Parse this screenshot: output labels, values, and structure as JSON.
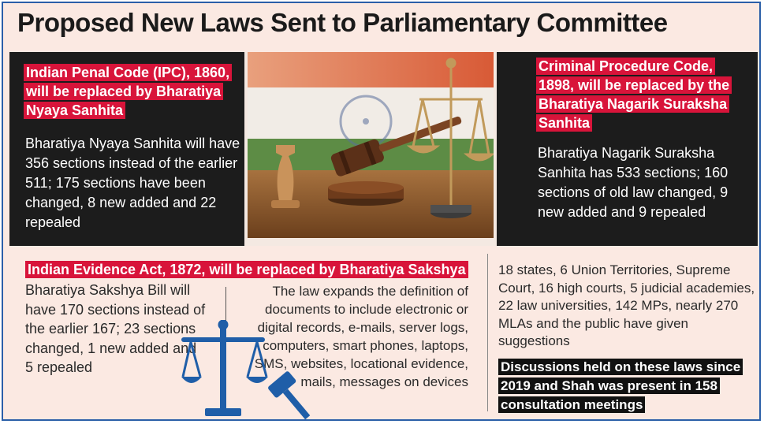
{
  "title": "Proposed New Laws Sent to Parliamentary Committee",
  "ipc": {
    "headline": "Indian Penal Code (IPC), 1860, will be replaced by Bharatiya Nyaya Sanhita",
    "body": "Bharatiya Nyaya Sanhita will have 356 sections instead of the earlier 511; 175 sections have been changed, 8 new added and 22 repealed"
  },
  "crpc": {
    "headline": "Criminal Procedure Code, 1898, will be replaced by the Bharatiya Nagarik Suraksha Sanhita",
    "body": "Bharatiya Nagarik Suraksha Sanhita has 533 sections; 160 sections of old law changed, 9 new added and 9 repealed"
  },
  "evidence": {
    "headline": "Indian Evidence Act, 1872, will be replaced by Bharatiya Sakshya",
    "body": "Bharatiya Sakshya Bill will have 170 sections instead of the earlier 167; 23 sections changed, 1 new added and 5 repealed",
    "expansion": "The law expands the definition of documents to include electronic or digital records, e-mails, server logs, computers, smart phones, laptops, SMS, websites, locational evidence, mails, messages on devices"
  },
  "consultation": {
    "suggestions": "18 states, 6 Union Territories, Supreme Court, 16 high courts, 5 judicial academies, 22 law universities, 142 MPs, nearly 270 MLAs and the public have given suggestions",
    "discussions": "Discussions held on these laws since 2019 and Shah was present in 158 consultation meetings"
  },
  "colors": {
    "accent_red": "#d8143a",
    "dark_panel": "#1c1c1c",
    "background": "#fbe9e2",
    "frame_border": "#2b5fa8",
    "icon_blue": "#1f5ea8"
  },
  "icons": [
    "justice-scale-gavel-photo",
    "balance-scale-gavel-icon"
  ]
}
